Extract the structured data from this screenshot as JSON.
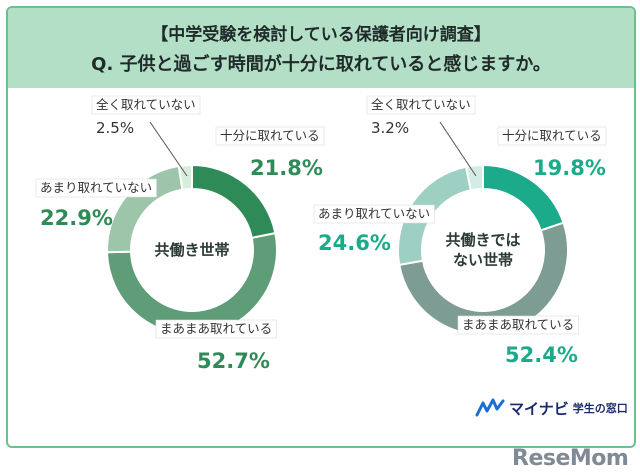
{
  "header": {
    "title": "【中学受験を検討している保護者向け調査】",
    "question": "Q. 子供と過ごす時間が十分に取れていると感じますか。"
  },
  "chart_data": [
    {
      "type": "pie",
      "donut": true,
      "center_label": "共働き世帯",
      "slices": [
        {
          "label": "十分に取れている",
          "value": 21.8,
          "display": "21.8%",
          "color": "#2e8b57"
        },
        {
          "label": "まあまあ取れている",
          "value": 52.7,
          "display": "52.7%",
          "color": "#5e9d77"
        },
        {
          "label": "あまり取れていない",
          "value": 22.9,
          "display": "22.9%",
          "color": "#9cc5aa"
        },
        {
          "label": "全く取れていない",
          "value": 2.5,
          "display": "2.5%",
          "color": "#d7eddd"
        }
      ]
    },
    {
      "type": "pie",
      "donut": true,
      "center_label": [
        "共働きでは",
        "ない世帯"
      ],
      "slices": [
        {
          "label": "十分に取れている",
          "value": 19.8,
          "display": "19.8%",
          "color": "#1cab8a"
        },
        {
          "label": "まあまあ取れている",
          "value": 52.4,
          "display": "52.4%",
          "color": "#7d9c93"
        },
        {
          "label": "あまり取れていない",
          "value": 24.6,
          "display": "24.6%",
          "color": "#9ecfc3"
        },
        {
          "label": "全く取れていない",
          "value": 3.2,
          "display": "3.2%",
          "color": "#d3ece5"
        }
      ]
    }
  ],
  "value_colors": [
    "#2e8b57",
    "#1cab8a"
  ],
  "logo": {
    "brand": "マイナビ",
    "sub": "学生の窓口"
  },
  "watermark": "ReseMom"
}
